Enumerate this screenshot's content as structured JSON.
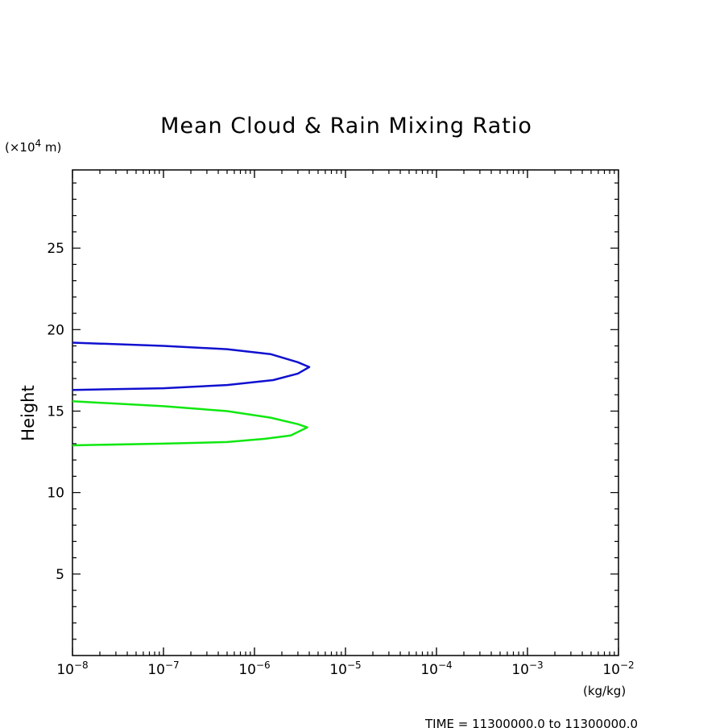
{
  "chart_data": {
    "type": "line",
    "title": "Mean Cloud & Rain Mixing Ratio",
    "ylabel": "Height",
    "y_unit": {
      "prefix": "(×10",
      "exponent": "4",
      "suffix": " m)"
    },
    "x_unit": "(kg/kg)",
    "x_scale": "log",
    "xlim": [
      1e-08,
      0.01
    ],
    "ylim": [
      0,
      29.8
    ],
    "x_ticks": [
      {
        "base": "10",
        "exp": "−8",
        "value": 1e-08
      },
      {
        "base": "10",
        "exp": "−7",
        "value": 1e-07
      },
      {
        "base": "10",
        "exp": "−6",
        "value": 1e-06
      },
      {
        "base": "10",
        "exp": "−5",
        "value": 1e-05
      },
      {
        "base": "10",
        "exp": "−4",
        "value": 0.0001
      },
      {
        "base": "10",
        "exp": "−3",
        "value": 0.001
      },
      {
        "base": "10",
        "exp": "−2",
        "value": 0.01
      }
    ],
    "y_ticks": [
      5,
      10,
      15,
      20,
      25
    ],
    "y_tick_labels": [
      "5",
      "10",
      "15",
      "20",
      "25"
    ],
    "grid": false,
    "series": [
      {
        "color": "#1010d0",
        "x": [
          1e-08,
          1e-07,
          5e-07,
          1.5e-06,
          3e-06,
          4e-06,
          3e-06,
          1.6e-06,
          5e-07,
          1e-07,
          1e-08
        ],
        "y": [
          19.2,
          19.0,
          18.8,
          18.5,
          18.0,
          17.7,
          17.3,
          16.9,
          16.6,
          16.4,
          16.3
        ]
      },
      {
        "color": "#10e810",
        "x": [
          1e-08,
          1e-07,
          5e-07,
          1.5e-06,
          3e-06,
          3.8e-06,
          2.5e-06,
          1.3e-06,
          5e-07,
          1e-07,
          1e-08
        ],
        "y": [
          15.6,
          15.3,
          15.0,
          14.6,
          14.2,
          14.0,
          13.5,
          13.3,
          13.1,
          13.0,
          12.9
        ]
      }
    ]
  },
  "footer": "TIME = 11300000.0 to 11300000.0"
}
